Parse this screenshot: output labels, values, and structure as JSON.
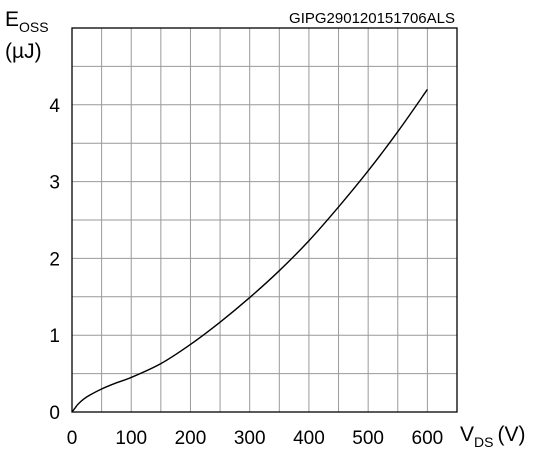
{
  "chart_data": {
    "type": "line",
    "code_label": "GIPG290120151706ALS",
    "ylabel": {
      "main": "E",
      "sub": "OSS",
      "unit": "(µJ)"
    },
    "xlabel": {
      "main": "V",
      "sub": "DS",
      "unit": "(V)"
    },
    "xlim": [
      0,
      650
    ],
    "ylim": [
      0,
      5
    ],
    "x_grid_step": 50,
    "y_grid_step": 0.5,
    "grid": true,
    "x_ticks": [
      0,
      100,
      200,
      300,
      400,
      500,
      600
    ],
    "y_ticks": [
      0,
      1,
      2,
      3,
      4
    ],
    "x_tick_labels": [
      "0",
      "100",
      "200",
      "300",
      "400",
      "500",
      "600"
    ],
    "y_tick_labels": [
      "0",
      "1",
      "2",
      "3",
      "4"
    ],
    "series": [
      {
        "color": "#000000",
        "x": [
          0,
          5,
          10,
          20,
          30,
          50,
          75,
          100,
          150,
          200,
          250,
          300,
          350,
          400,
          450,
          500,
          550,
          600
        ],
        "y": [
          0,
          0.05,
          0.1,
          0.17,
          0.22,
          0.3,
          0.38,
          0.45,
          0.63,
          0.88,
          1.17,
          1.49,
          1.84,
          2.23,
          2.67,
          3.14,
          3.65,
          4.2
        ]
      }
    ]
  }
}
